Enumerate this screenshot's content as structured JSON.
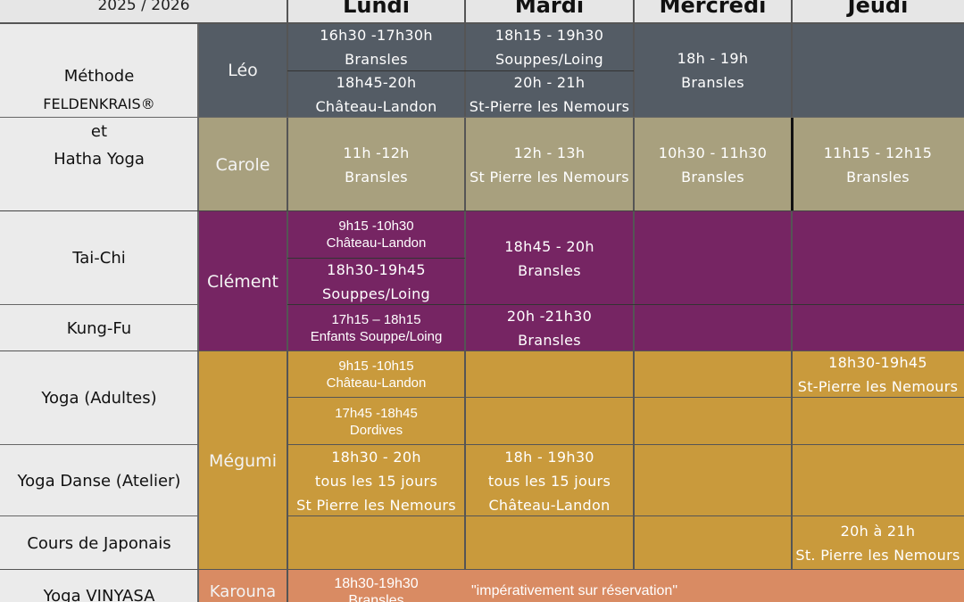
{
  "header": {
    "year": "2025 / 2026",
    "days": [
      "Lundi",
      "Mardi",
      "Mercredi",
      "Jeudi"
    ]
  },
  "disciplines": {
    "feldenkrais": [
      "Méthode",
      "FELDENKRAIS®",
      "et",
      "Hatha Yoga"
    ],
    "taichi": "Tai-Chi",
    "kungfu": "Kung-Fu",
    "yoga_adultes": "Yoga (Adultes)",
    "yoga_danse": "Yoga Danse (Atelier)",
    "japonais": "Cours de Japonais",
    "vinyasa": "Yoga VINYASA"
  },
  "teachers": {
    "leo": "Léo",
    "carole": "Carole",
    "clement": "Clément",
    "megumi": "Mégumi",
    "karouna": "Karouna"
  },
  "slots": {
    "leo_lundi_1": [
      "16h30 -17h30h",
      "Bransles"
    ],
    "leo_lundi_2": [
      "18h45-20h",
      "Château-Landon"
    ],
    "leo_mardi_1": [
      "18h15 - 19h30",
      "Souppes/Loing"
    ],
    "leo_mardi_2": [
      "20h - 21h",
      "St-Pierre les Nemours"
    ],
    "leo_mercredi": [
      "18h - 19h",
      "Bransles"
    ],
    "carole_lundi": [
      "11h -12h",
      "Bransles"
    ],
    "carole_mardi": [
      "12h - 13h",
      "St Pierre les Nemours"
    ],
    "carole_mercredi": [
      "10h30 - 11h30",
      "Bransles"
    ],
    "carole_jeudi": [
      "11h15 - 12h15",
      "Bransles"
    ],
    "clement_lundi_1": [
      "9h15 -10h30",
      "Château-Landon"
    ],
    "clement_lundi_2": [
      "18h30-19h45",
      "Souppes/Loing"
    ],
    "clement_mardi_1": [
      "18h45 - 20h",
      "Bransles"
    ],
    "clement_lundi_3": [
      "17h15 – 18h15",
      "Enfants Souppe/Loing"
    ],
    "clement_mardi_2": [
      "20h -21h30",
      "Bransles"
    ],
    "megumi_lundi_1": [
      "9h15 -10h15",
      "Château-Landon"
    ],
    "megumi_jeudi_1": [
      "18h30-19h45",
      "St-Pierre les Nemours"
    ],
    "megumi_lundi_2": [
      "17h45 -18h45",
      "Dordives"
    ],
    "megumi_lundi_3": [
      "18h30 - 20h",
      "tous les 15 jours",
      "St Pierre les Nemours"
    ],
    "megumi_mardi_3": [
      "18h - 19h30",
      "tous les 15 jours",
      "Château-Landon"
    ],
    "megumi_jeudi_4": [
      "20h à 21h",
      "St. Pierre les Nemours"
    ],
    "karouna_lundi": [
      "18h30-19h30",
      "Bransles"
    ]
  },
  "karouna_note": "\"impérativement sur réservation\"",
  "colors": {
    "slate": "#545c65",
    "khaki": "#a8a07e",
    "plum": "#762563",
    "gold": "#c99a3c",
    "salmon": "#d98b63"
  }
}
